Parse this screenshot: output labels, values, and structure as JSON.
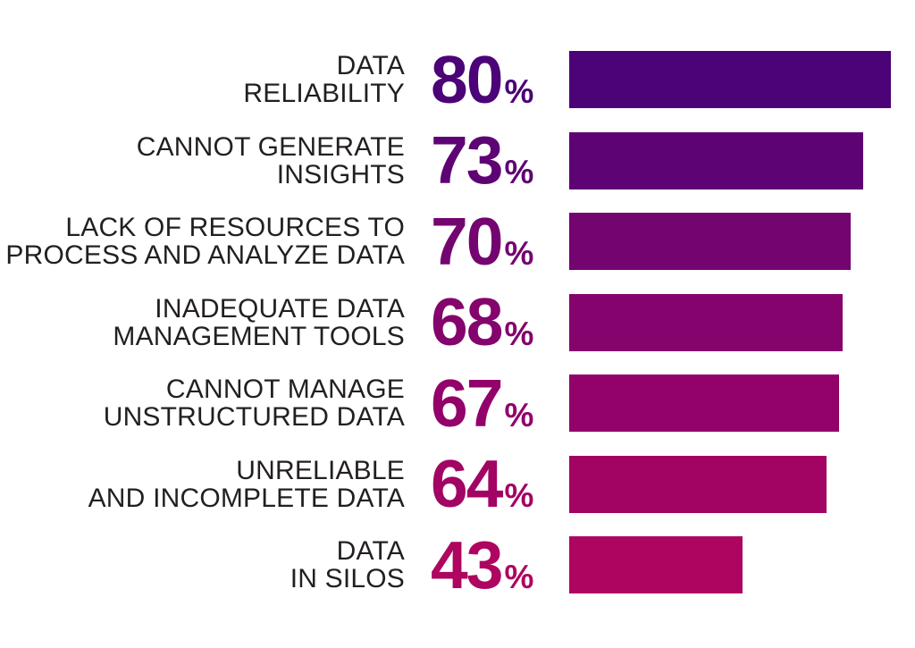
{
  "chart_data": {
    "type": "bar",
    "orientation": "horizontal",
    "title": "",
    "xlabel": "",
    "ylabel": "",
    "unit": "%",
    "xlim": [
      0,
      86
    ],
    "grid": false,
    "legend": false,
    "background_color": "#FFFFFF",
    "label_color": "#231F20",
    "categories": [
      "DATA RELIABILITY",
      "CANNOT GENERATE INSIGHTS",
      "LACK OF RESOURCES TO PROCESS AND ANALYZE DATA",
      "INADEQUATE DATA MANAGEMENT TOOLS",
      "CANNOT MANAGE UNSTRUCTURED DATA",
      "UNRELIABLE AND INCOMPLETE DATA",
      "DATA IN SILOS"
    ],
    "values": [
      80,
      73,
      70,
      68,
      67,
      64,
      43
    ],
    "bar_colors": [
      "#4B0377",
      "#5E0374",
      "#730470",
      "#84036C",
      "#92026A",
      "#A20464",
      "#AE0560"
    ],
    "rows": [
      {
        "label_line1": "DATA",
        "label_line2": "RELIABILITY",
        "value": 80,
        "unit": "%",
        "color": "#4B0377"
      },
      {
        "label_line1": "CANNOT GENERATE",
        "label_line2": "INSIGHTS",
        "value": 73,
        "unit": "%",
        "color": "#5E0374"
      },
      {
        "label_line1": "LACK OF RESOURCES TO",
        "label_line2": "PROCESS AND ANALYZE DATA",
        "value": 70,
        "unit": "%",
        "color": "#730470"
      },
      {
        "label_line1": "INADEQUATE DATA",
        "label_line2": "MANAGEMENT TOOLS",
        "value": 68,
        "unit": "%",
        "color": "#84036C"
      },
      {
        "label_line1": "CANNOT MANAGE",
        "label_line2": "UNSTRUCTURED DATA",
        "value": 67,
        "unit": "%",
        "color": "#92026A"
      },
      {
        "label_line1": "UNRELIABLE",
        "label_line2": "AND INCOMPLETE DATA",
        "value": 64,
        "unit": "%",
        "color": "#A20464"
      },
      {
        "label_line1": "DATA",
        "label_line2": "IN SILOS",
        "value": 43,
        "unit": "%",
        "color": "#AE0560"
      }
    ]
  }
}
